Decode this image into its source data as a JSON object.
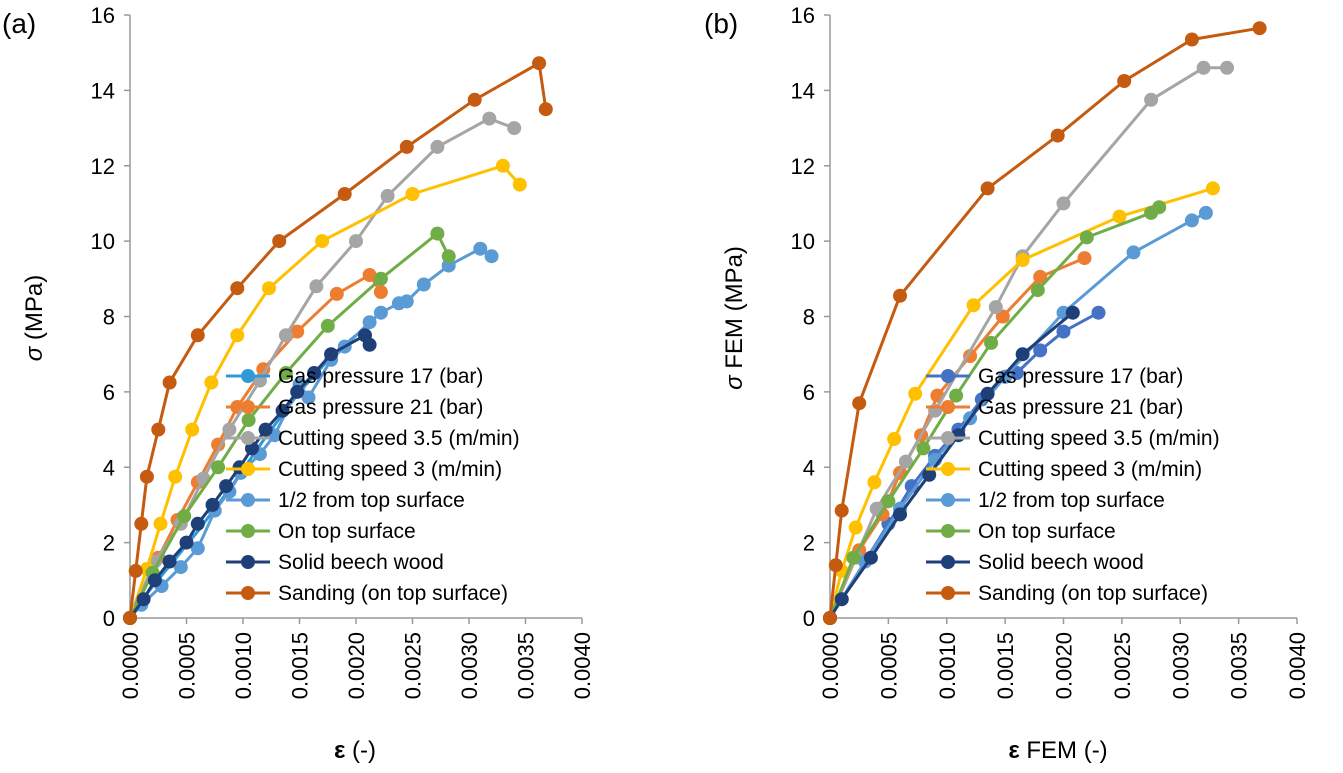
{
  "chart_data": [
    {
      "type": "line",
      "panel_label": "(a)",
      "xlabel_symbol": "ε",
      "xlabel_rest": " (-)",
      "ylabel_symbol": "σ",
      "ylabel_rest": " (MPa)",
      "xlim": [
        0,
        0.004
      ],
      "ylim": [
        0,
        16
      ],
      "xticks": [
        "0.0000",
        "0.0005",
        "0.0010",
        "0.0015",
        "0.0020",
        "0.0025",
        "0.0030",
        "0.0035",
        "0.0040"
      ],
      "yticks": [
        "0",
        "2",
        "4",
        "6",
        "8",
        "10",
        "12",
        "14",
        "16"
      ],
      "legend_position": "lower-right",
      "grid": false,
      "series": [
        {
          "name": "Gas pressure 17 (bar)",
          "color": "#2E9BD6",
          "marker": false,
          "points": [
            [
              0,
              0
            ],
            [
              8e-05,
              0.4
            ],
            [
              0.0003,
              1.2
            ],
            [
              0.0006,
              2.3
            ],
            [
              0.0009,
              3.5
            ],
            [
              0.0012,
              4.8
            ],
            [
              0.0015,
              6.0
            ],
            [
              0.0018,
              7.0
            ],
            [
              0.002,
              7.5
            ]
          ]
        },
        {
          "name": "Gas pressure 21 (bar)",
          "color": "#ED7D31",
          "marker": true,
          "points": [
            [
              0,
              0
            ],
            [
              0.00025,
              1.6
            ],
            [
              0.00042,
              2.6
            ],
            [
              0.0006,
              3.6
            ],
            [
              0.00078,
              4.6
            ],
            [
              0.00095,
              5.6
            ],
            [
              0.00118,
              6.6
            ],
            [
              0.00148,
              7.6
            ],
            [
              0.00183,
              8.6
            ],
            [
              0.00212,
              9.1
            ],
            [
              0.00222,
              8.65
            ]
          ]
        },
        {
          "name": "Cutting speed 3.5 (m/min)",
          "color": "#A5A5A5",
          "marker": true,
          "points": [
            [
              0,
              0
            ],
            [
              0.00022,
              1.5
            ],
            [
              0.00045,
              2.5
            ],
            [
              0.00065,
              3.7
            ],
            [
              0.00088,
              5.0
            ],
            [
              0.00115,
              6.3
            ],
            [
              0.00138,
              7.5
            ],
            [
              0.00165,
              8.8
            ],
            [
              0.002,
              10.0
            ],
            [
              0.00228,
              11.2
            ],
            [
              0.00272,
              12.5
            ],
            [
              0.00318,
              13.25
            ],
            [
              0.0034,
              13.0
            ]
          ]
        },
        {
          "name": "Cutting speed 3 (m/min)",
          "color": "#FFC000",
          "marker": true,
          "points": [
            [
              0,
              0
            ],
            [
              0.00015,
              1.3
            ],
            [
              0.00027,
              2.5
            ],
            [
              0.0004,
              3.75
            ],
            [
              0.00055,
              5.0
            ],
            [
              0.00072,
              6.25
            ],
            [
              0.00095,
              7.5
            ],
            [
              0.00123,
              8.75
            ],
            [
              0.0017,
              10.0
            ],
            [
              0.0025,
              11.25
            ],
            [
              0.0033,
              12.0
            ],
            [
              0.00345,
              11.5
            ]
          ]
        },
        {
          "name": "1/2 from top surface",
          "color": "#5B9BD5",
          "marker": true,
          "points": [
            [
              0,
              0
            ],
            [
              0.0001,
              0.35
            ],
            [
              0.00028,
              0.85
            ],
            [
              0.00045,
              1.35
            ],
            [
              0.0006,
              1.85
            ],
            [
              0.00075,
              2.85
            ],
            [
              0.00088,
              3.35
            ],
            [
              0.00098,
              3.85
            ],
            [
              0.00115,
              4.35
            ],
            [
              0.00128,
              4.85
            ],
            [
              0.0015,
              6.2
            ],
            [
              0.00158,
              5.85
            ],
            [
              0.00178,
              6.85
            ],
            [
              0.0019,
              7.2
            ],
            [
              0.00212,
              7.85
            ],
            [
              0.00222,
              8.1
            ],
            [
              0.00238,
              8.35
            ],
            [
              0.00245,
              8.4
            ],
            [
              0.0026,
              8.85
            ],
            [
              0.00282,
              9.35
            ],
            [
              0.0031,
              9.8
            ],
            [
              0.0032,
              9.6
            ]
          ]
        },
        {
          "name": "On top surface",
          "color": "#70AD47",
          "marker": true,
          "points": [
            [
              0,
              0
            ],
            [
              0.0002,
              1.2
            ],
            [
              0.00048,
              2.7
            ],
            [
              0.00078,
              4.0
            ],
            [
              0.00105,
              5.25
            ],
            [
              0.00138,
              6.5
            ],
            [
              0.00175,
              7.75
            ],
            [
              0.00222,
              9.0
            ],
            [
              0.00272,
              10.2
            ],
            [
              0.00282,
              9.6
            ]
          ]
        },
        {
          "name": "Solid beech wood",
          "color": "#1F3F78",
          "marker": true,
          "points": [
            [
              0,
              0
            ],
            [
              0.00012,
              0.5
            ],
            [
              0.00022,
              1.0
            ],
            [
              0.00035,
              1.5
            ],
            [
              0.0005,
              2.0
            ],
            [
              0.0006,
              2.5
            ],
            [
              0.00073,
              3.0
            ],
            [
              0.00085,
              3.5
            ],
            [
              0.00097,
              4.0
            ],
            [
              0.00108,
              4.5
            ],
            [
              0.0012,
              5.0
            ],
            [
              0.00135,
              5.5
            ],
            [
              0.00148,
              6.0
            ],
            [
              0.00163,
              6.5
            ],
            [
              0.00178,
              7.0
            ],
            [
              0.00208,
              7.5
            ],
            [
              0.00212,
              7.25
            ]
          ]
        },
        {
          "name": "Sanding (on top surface)",
          "color": "#C55A11",
          "marker": true,
          "points": [
            [
              0,
              0
            ],
            [
              5e-05,
              1.25
            ],
            [
              0.0001,
              2.5
            ],
            [
              0.00015,
              3.75
            ],
            [
              0.00025,
              5.0
            ],
            [
              0.00035,
              6.25
            ],
            [
              0.0006,
              7.5
            ],
            [
              0.00095,
              8.75
            ],
            [
              0.00132,
              10.0
            ],
            [
              0.0019,
              11.25
            ],
            [
              0.00245,
              12.5
            ],
            [
              0.00305,
              13.75
            ],
            [
              0.00362,
              14.72
            ],
            [
              0.00368,
              13.5
            ]
          ]
        }
      ],
      "legend": [
        "Gas pressure 17 (bar)",
        "Gas pressure 21 (bar)",
        "Cutting speed 3.5 (m/min)",
        "Cutting speed 3 (m/min)",
        "1/2 from top surface",
        "On top surface",
        "Solid beech wood",
        "Sanding (on top surface)"
      ]
    },
    {
      "type": "line",
      "panel_label": "(b)",
      "xlabel_symbol": "ε",
      "xlabel_rest": " FEM (-)",
      "ylabel_symbol": "σ",
      "ylabel_rest": " FEM (MPa)",
      "xlim": [
        0,
        0.004
      ],
      "ylim": [
        0,
        16
      ],
      "xticks": [
        "0.0000",
        "0.0005",
        "0.0010",
        "0.0015",
        "0.0020",
        "0.0025",
        "0.0030",
        "0.0035",
        "0.0040"
      ],
      "yticks": [
        "0",
        "2",
        "4",
        "6",
        "8",
        "10",
        "12",
        "14",
        "16"
      ],
      "legend_position": "lower-right",
      "grid": false,
      "series": [
        {
          "name": "Gas pressure 17 (bar)",
          "color": "#4472C4",
          "marker": true,
          "points": [
            [
              0,
              0
            ],
            [
              0.0001,
              0.5
            ],
            [
              0.0003,
              1.5
            ],
            [
              0.0005,
              2.5
            ],
            [
              0.0007,
              3.5
            ],
            [
              0.0009,
              4.3
            ],
            [
              0.0011,
              5.0
            ],
            [
              0.0013,
              5.8
            ],
            [
              0.0015,
              6.4
            ],
            [
              0.0016,
              6.5
            ],
            [
              0.0018,
              7.1
            ],
            [
              0.002,
              7.6
            ],
            [
              0.0023,
              8.1
            ]
          ]
        },
        {
          "name": "Gas pressure 21 (bar)",
          "color": "#ED7D31",
          "marker": true,
          "points": [
            [
              0,
              0
            ],
            [
              0.00025,
              1.8
            ],
            [
              0.00045,
              2.75
            ],
            [
              0.0006,
              3.85
            ],
            [
              0.00078,
              4.85
            ],
            [
              0.00092,
              5.9
            ],
            [
              0.0012,
              6.95
            ],
            [
              0.00148,
              8.0
            ],
            [
              0.0018,
              9.05
            ],
            [
              0.00218,
              9.55
            ]
          ]
        },
        {
          "name": "Cutting speed 3.5 (m/min)",
          "color": "#A5A5A5",
          "marker": true,
          "points": [
            [
              0,
              0
            ],
            [
              0.00022,
              1.6
            ],
            [
              0.0004,
              2.9
            ],
            [
              0.00065,
              4.15
            ],
            [
              0.0009,
              5.5
            ],
            [
              0.00142,
              8.25
            ],
            [
              0.00165,
              9.6
            ],
            [
              0.002,
              11.0
            ],
            [
              0.00275,
              13.75
            ],
            [
              0.0032,
              14.6
            ],
            [
              0.0034,
              14.6
            ]
          ]
        },
        {
          "name": "Cutting speed 3 (m/min)",
          "color": "#FFC000",
          "marker": true,
          "points": [
            [
              0,
              0
            ],
            [
              0.0001,
              1.25
            ],
            [
              0.00022,
              2.4
            ],
            [
              0.00038,
              3.6
            ],
            [
              0.00055,
              4.75
            ],
            [
              0.00073,
              5.95
            ],
            [
              0.00123,
              8.3
            ],
            [
              0.00165,
              9.5
            ],
            [
              0.00248,
              10.65
            ],
            [
              0.00328,
              11.4
            ]
          ]
        },
        {
          "name": "1/2 from top surface",
          "color": "#5B9BD5",
          "marker": true,
          "points": [
            [
              0,
              0
            ],
            [
              0.0003,
              1.5
            ],
            [
              0.0006,
              2.9
            ],
            [
              0.0009,
              4.2
            ],
            [
              0.0012,
              5.3
            ],
            [
              0.0015,
              6.4
            ],
            [
              0.002,
              8.1
            ],
            [
              0.0026,
              9.7
            ],
            [
              0.0031,
              10.55
            ],
            [
              0.00322,
              10.75
            ]
          ]
        },
        {
          "name": "On top surface",
          "color": "#70AD47",
          "marker": true,
          "points": [
            [
              0,
              0
            ],
            [
              0.0002,
              1.6
            ],
            [
              0.0005,
              3.1
            ],
            [
              0.0008,
              4.5
            ],
            [
              0.00108,
              5.9
            ],
            [
              0.00138,
              7.3
            ],
            [
              0.00178,
              8.7
            ],
            [
              0.0022,
              10.1
            ],
            [
              0.00275,
              10.75
            ],
            [
              0.00282,
              10.9
            ]
          ]
        },
        {
          "name": "Solid beech wood",
          "color": "#1F3F78",
          "marker": true,
          "points": [
            [
              0,
              0
            ],
            [
              0.0001,
              0.5
            ],
            [
              0.00035,
              1.6
            ],
            [
              0.0006,
              2.75
            ],
            [
              0.00085,
              3.8
            ],
            [
              0.0011,
              4.85
            ],
            [
              0.00135,
              5.95
            ],
            [
              0.00165,
              7.0
            ],
            [
              0.00208,
              8.1
            ]
          ]
        },
        {
          "name": "Sanding (on top surface)",
          "color": "#C55A11",
          "marker": true,
          "points": [
            [
              0,
              0
            ],
            [
              5e-05,
              1.4
            ],
            [
              0.0001,
              2.85
            ],
            [
              0.00025,
              5.7
            ],
            [
              0.0006,
              8.55
            ],
            [
              0.00135,
              11.4
            ],
            [
              0.00195,
              12.8
            ],
            [
              0.00252,
              14.25
            ],
            [
              0.0031,
              15.35
            ],
            [
              0.00368,
              15.65
            ]
          ]
        }
      ],
      "legend": [
        "Gas pressure 17 (bar)",
        "Gas pressure 21 (bar)",
        "Cutting speed 3.5 (m/min)",
        "Cutting speed 3 (m/min)",
        "1/2 from top surface",
        "On top surface",
        "Solid beech wood",
        "Sanding (on top surface)"
      ]
    }
  ]
}
